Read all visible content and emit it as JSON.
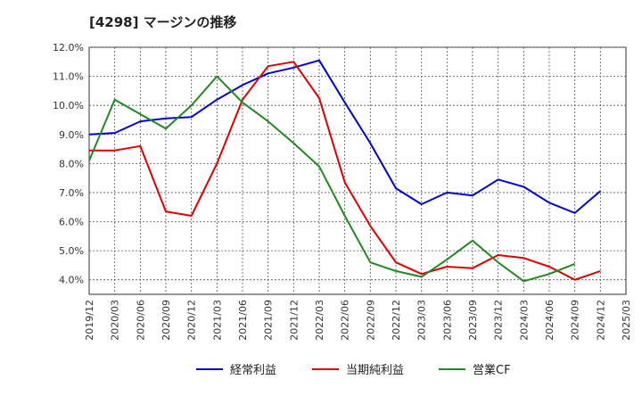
{
  "chart_data": {
    "type": "line",
    "title": "[4298]  マージンの推移",
    "xlabel": "",
    "ylabel": "",
    "ylim": [
      3.5,
      12.0
    ],
    "yticks": [
      "4.0%",
      "5.0%",
      "6.0%",
      "7.0%",
      "8.0%",
      "9.0%",
      "10.0%",
      "11.0%",
      "12.0%"
    ],
    "ytick_values": [
      4,
      5,
      6,
      7,
      8,
      9,
      10,
      11,
      12
    ],
    "categories": [
      "2019/12",
      "2020/03",
      "2020/06",
      "2020/09",
      "2020/12",
      "2021/03",
      "2021/06",
      "2021/09",
      "2021/12",
      "2022/03",
      "2022/06",
      "2022/09",
      "2022/12",
      "2023/03",
      "2023/06",
      "2023/09",
      "2023/12",
      "2024/03",
      "2024/06",
      "2024/09",
      "2024/12",
      "2025/03"
    ],
    "grid": true,
    "legend_position": "bottom",
    "series": [
      {
        "name": "経常利益",
        "color": "#0000cc",
        "values": [
          9.0,
          9.05,
          9.45,
          9.55,
          9.6,
          10.2,
          10.7,
          11.1,
          11.3,
          11.55,
          10.1,
          8.7,
          7.15,
          6.6,
          7.0,
          6.9,
          7.45,
          7.2,
          6.65,
          6.3,
          7.05,
          null
        ]
      },
      {
        "name": "当期純利益",
        "color": "#dd0000",
        "values": [
          8.45,
          8.45,
          8.6,
          6.35,
          6.2,
          8.0,
          10.2,
          11.35,
          11.5,
          10.25,
          7.35,
          5.85,
          4.6,
          4.2,
          4.45,
          4.4,
          4.85,
          4.75,
          4.45,
          4.0,
          4.3,
          null
        ]
      },
      {
        "name": "営業CF",
        "color": "#228822",
        "values": [
          8.1,
          10.2,
          9.7,
          9.2,
          10.0,
          11.0,
          10.1,
          9.45,
          8.7,
          7.9,
          6.2,
          4.6,
          4.3,
          4.1,
          4.7,
          5.35,
          4.6,
          3.95,
          4.2,
          4.55,
          null,
          null
        ]
      }
    ]
  }
}
